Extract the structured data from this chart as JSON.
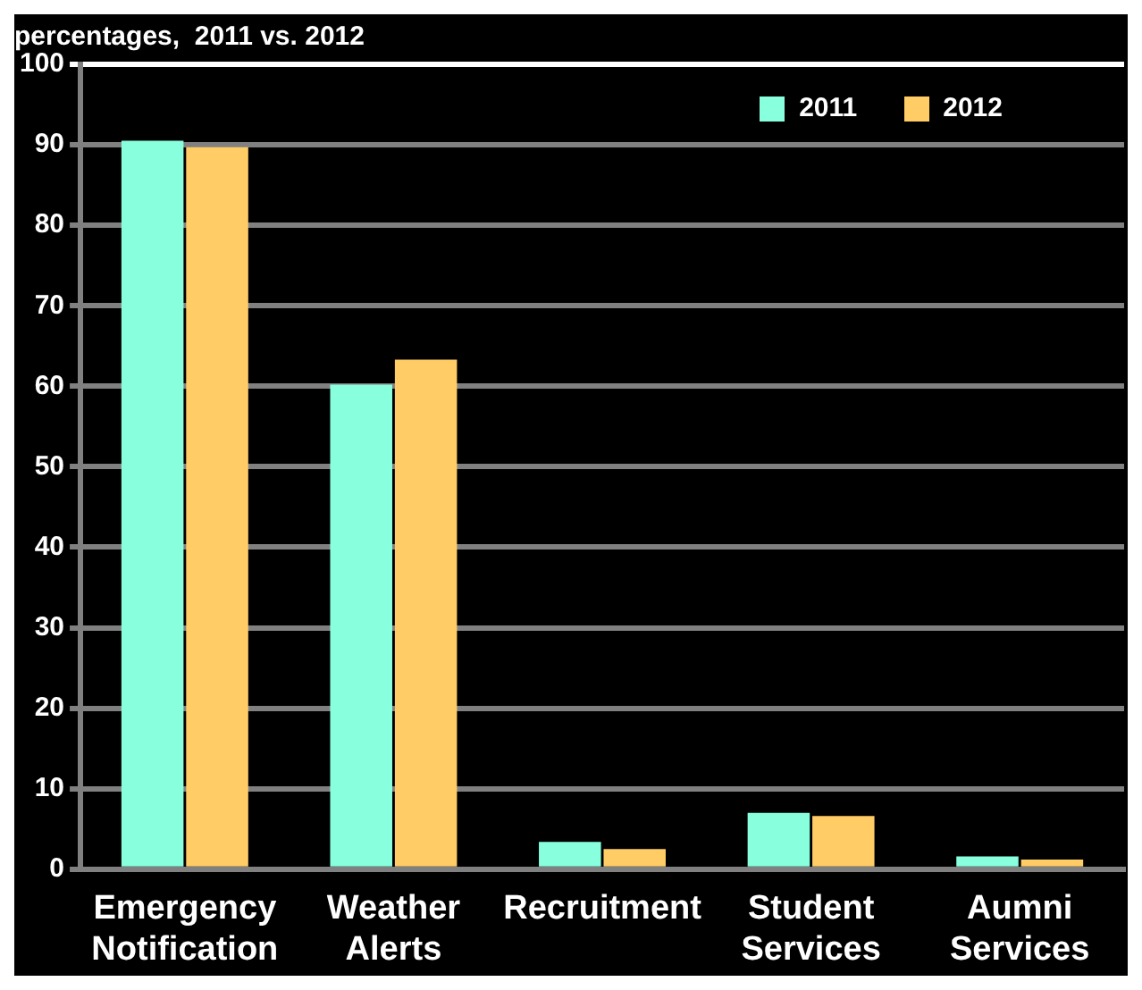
{
  "chart_data": {
    "type": "bar",
    "title": "percentages,  2011 vs. 2012",
    "categories": [
      "Emergency Notification",
      "Weather Alerts",
      "Recruitment",
      "Student Services",
      "Aumni Services"
    ],
    "series": [
      {
        "name": "2011",
        "color": "#88ffdd",
        "values": [
          90.5,
          60.2,
          3.4,
          7.0,
          1.6
        ]
      },
      {
        "name": "2012",
        "color": "#ffcc66",
        "values": [
          89.7,
          63.3,
          2.5,
          6.6,
          1.2
        ]
      }
    ],
    "ylim": [
      0,
      100
    ],
    "yticks": [
      0,
      10,
      20,
      30,
      40,
      50,
      60,
      70,
      80,
      90,
      100
    ],
    "grid": "y",
    "legend": "top right"
  }
}
